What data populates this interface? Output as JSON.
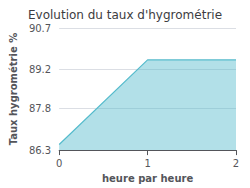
{
  "chart_data": {
    "type": "line",
    "title": "Evolution du taux d'hygrométrie",
    "xlabel": "heure par heure",
    "ylabel": "Taux hygrométrie %",
    "x": [
      0,
      1,
      2
    ],
    "values": [
      86.5,
      89.55,
      89.55
    ],
    "color": "#55bbcc",
    "xlim": [
      0,
      2
    ],
    "xticks": [
      0,
      1,
      2
    ],
    "ylim": [
      86.3,
      90.7
    ],
    "yticks": [
      86.3,
      87.8,
      89.2,
      90.7
    ],
    "grid": true
  }
}
